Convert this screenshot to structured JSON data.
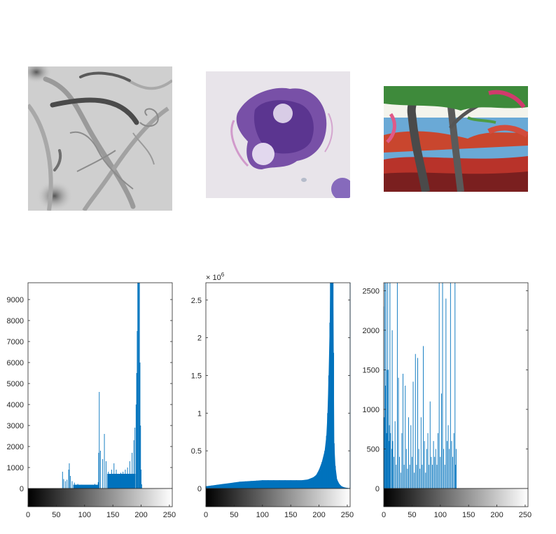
{
  "figure": {
    "accent_color": "#0072BD",
    "axis_color": "#262626"
  },
  "images": [
    {
      "name": "Grayscale image of curved thin lines on a light gray background",
      "type": "grayscale"
    },
    {
      "name": "Histology image of purple stained tissue section",
      "type": "rgb"
    },
    {
      "name": "Painting of trees by water with red and green tones",
      "type": "indexed"
    }
  ],
  "chart_data": [
    {
      "type": "bar",
      "title": "",
      "xlabel": "",
      "ylabel": "",
      "xlim": [
        0,
        255
      ],
      "ylim": [
        0,
        9800
      ],
      "yticks": [
        0,
        1000,
        2000,
        3000,
        4000,
        5000,
        6000,
        7000,
        8000,
        9000
      ],
      "ytick_labels": [
        "0",
        "1000",
        "2000",
        "3000",
        "4000",
        "5000",
        "6000",
        "7000",
        "8000",
        "9000"
      ],
      "xticks": [
        0,
        50,
        100,
        150,
        200,
        250
      ],
      "xtick_labels": [
        "0",
        "50",
        "100",
        "150",
        "200",
        "250"
      ],
      "exponent_label": "",
      "colorbar": "grayscale",
      "bars": [
        [
          61,
          800
        ],
        [
          63,
          450
        ],
        [
          66,
          350
        ],
        [
          69,
          420
        ],
        [
          72,
          900
        ],
        [
          73,
          1200
        ],
        [
          75,
          600
        ],
        [
          78,
          350
        ],
        [
          82,
          280
        ],
        [
          88,
          220
        ],
        [
          95,
          180
        ],
        [
          102,
          150
        ],
        [
          110,
          170
        ],
        [
          118,
          220
        ],
        [
          124,
          300
        ],
        [
          125,
          1700
        ],
        [
          126,
          4600
        ],
        [
          128,
          1800
        ],
        [
          132,
          1400
        ],
        [
          135,
          2600
        ],
        [
          138,
          1300
        ],
        [
          142,
          800
        ],
        [
          148,
          900
        ],
        [
          152,
          1200
        ],
        [
          156,
          900
        ],
        [
          160,
          700
        ],
        [
          164,
          750
        ],
        [
          168,
          800
        ],
        [
          172,
          900
        ],
        [
          176,
          1000
        ],
        [
          180,
          1300
        ],
        [
          184,
          1700
        ],
        [
          187,
          2300
        ],
        [
          189,
          2900
        ],
        [
          191,
          4000
        ],
        [
          192,
          5500
        ],
        [
          193,
          7500
        ],
        [
          194,
          9800
        ],
        [
          195,
          9800
        ],
        [
          196,
          9800
        ],
        [
          197,
          9800
        ],
        [
          198,
          6000
        ],
        [
          199,
          3000
        ],
        [
          200,
          900
        ],
        [
          201,
          200
        ]
      ],
      "fill_regions": [
        {
          "x_from": 80,
          "x_to": 124,
          "value": 180
        },
        {
          "x_from": 140,
          "x_to": 190,
          "value": 700
        }
      ]
    },
    {
      "type": "bar",
      "title": "",
      "xlabel": "",
      "ylabel": "",
      "xlim": [
        0,
        255
      ],
      "ylim": [
        0,
        2730000
      ],
      "yticks": [
        0,
        500000,
        1000000,
        1500000,
        2000000,
        2500000
      ],
      "ytick_labels": [
        "0",
        "0.5",
        "1",
        "1.5",
        "2",
        "2.5"
      ],
      "xticks": [
        0,
        50,
        100,
        150,
        200,
        250
      ],
      "xtick_labels": [
        "0",
        "50",
        "100",
        "150",
        "200",
        "250"
      ],
      "exponent_label": "× 10^6",
      "exponent_base": "× 10",
      "exponent_power": "6",
      "colorbar": "grayscale",
      "bars": [
        [
          0,
          30000
        ],
        [
          10,
          40000
        ],
        [
          20,
          50000
        ],
        [
          30,
          60000
        ],
        [
          40,
          70000
        ],
        [
          50,
          80000
        ],
        [
          60,
          90000
        ],
        [
          70,
          95000
        ],
        [
          80,
          100000
        ],
        [
          90,
          105000
        ],
        [
          100,
          110000
        ],
        [
          110,
          110000
        ],
        [
          120,
          110000
        ],
        [
          130,
          110000
        ],
        [
          140,
          110000
        ],
        [
          150,
          110000
        ],
        [
          160,
          110000
        ],
        [
          170,
          110000
        ],
        [
          180,
          120000
        ],
        [
          190,
          150000
        ],
        [
          195,
          180000
        ],
        [
          200,
          250000
        ],
        [
          205,
          350000
        ],
        [
          210,
          500000
        ],
        [
          213,
          700000
        ],
        [
          215,
          1000000
        ],
        [
          217,
          1500000
        ],
        [
          219,
          2200000
        ],
        [
          220,
          2730000
        ],
        [
          221,
          2730000
        ],
        [
          222,
          2730000
        ],
        [
          223,
          2730000
        ],
        [
          224,
          2730000
        ],
        [
          225,
          2730000
        ],
        [
          226,
          1800000
        ],
        [
          227,
          600000
        ],
        [
          229,
          300000
        ],
        [
          232,
          120000
        ],
        [
          236,
          60000
        ],
        [
          240,
          30000
        ],
        [
          245,
          15000
        ],
        [
          250,
          8000
        ],
        [
          254,
          5000
        ],
        [
          255,
          2730000
        ]
      ],
      "fill_regions": []
    },
    {
      "type": "bar",
      "title": "",
      "xlabel": "",
      "ylabel": "",
      "xlim": [
        0,
        255
      ],
      "ylim": [
        0,
        2600
      ],
      "yticks": [
        0,
        500,
        1000,
        1500,
        2000,
        2500
      ],
      "ytick_labels": [
        "0",
        "500",
        "1000",
        "1500",
        "2000",
        "2500"
      ],
      "xticks": [
        0,
        50,
        100,
        150,
        200,
        250
      ],
      "xtick_labels": [
        "0",
        "50",
        "100",
        "150",
        "200",
        "250"
      ],
      "exponent_label": "",
      "colorbar": "grayscale",
      "bars": [
        [
          0,
          2300
        ],
        [
          1,
          900
        ],
        [
          2,
          2600
        ],
        [
          3,
          1300
        ],
        [
          4,
          2600
        ],
        [
          5,
          700
        ],
        [
          6,
          1500
        ],
        [
          7,
          2600
        ],
        [
          8,
          1500
        ],
        [
          9,
          600
        ],
        [
          10,
          800
        ],
        [
          11,
          2600
        ],
        [
          12,
          700
        ],
        [
          14,
          500
        ],
        [
          15,
          2000
        ],
        [
          16,
          600
        ],
        [
          18,
          400
        ],
        [
          20,
          850
        ],
        [
          22,
          300
        ],
        [
          24,
          2600
        ],
        [
          26,
          1400
        ],
        [
          28,
          400
        ],
        [
          30,
          200
        ],
        [
          32,
          700
        ],
        [
          34,
          1450
        ],
        [
          36,
          300
        ],
        [
          38,
          1300
        ],
        [
          40,
          500
        ],
        [
          42,
          250
        ],
        [
          44,
          900
        ],
        [
          46,
          300
        ],
        [
          48,
          800
        ],
        [
          50,
          400
        ],
        [
          52,
          1350
        ],
        [
          54,
          200
        ],
        [
          56,
          1700
        ],
        [
          58,
          300
        ],
        [
          60,
          1650
        ],
        [
          62,
          500
        ],
        [
          64,
          250
        ],
        [
          66,
          900
        ],
        [
          68,
          300
        ],
        [
          70,
          1800
        ],
        [
          72,
          600
        ],
        [
          74,
          200
        ],
        [
          76,
          500
        ],
        [
          78,
          700
        ],
        [
          80,
          300
        ],
        [
          82,
          1100
        ],
        [
          84,
          400
        ],
        [
          86,
          300
        ],
        [
          88,
          600
        ],
        [
          90,
          400
        ],
        [
          92,
          500
        ],
        [
          94,
          300
        ],
        [
          96,
          700
        ],
        [
          98,
          2600
        ],
        [
          100,
          400
        ],
        [
          102,
          1200
        ],
        [
          104,
          2600
        ],
        [
          106,
          500
        ],
        [
          108,
          300
        ],
        [
          110,
          2400
        ],
        [
          112,
          600
        ],
        [
          114,
          800
        ],
        [
          116,
          500
        ],
        [
          118,
          2600
        ],
        [
          120,
          600
        ],
        [
          122,
          400
        ],
        [
          124,
          700
        ],
        [
          126,
          2600
        ],
        [
          127,
          300
        ],
        [
          128,
          500
        ]
      ],
      "fill_regions": []
    }
  ]
}
